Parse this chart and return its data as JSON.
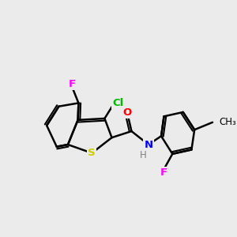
{
  "bg_color": "#ebebeb",
  "atom_colors": {
    "C": "#000000",
    "H": "#808080",
    "N": "#0000ff",
    "O": "#ff0000",
    "S": "#cccc00",
    "F": "#ff00ff",
    "Cl": "#00bb00"
  },
  "bond_color": "#000000",
  "bond_width": 1.8,
  "figsize": [
    3.0,
    3.0
  ],
  "dpi": 100
}
